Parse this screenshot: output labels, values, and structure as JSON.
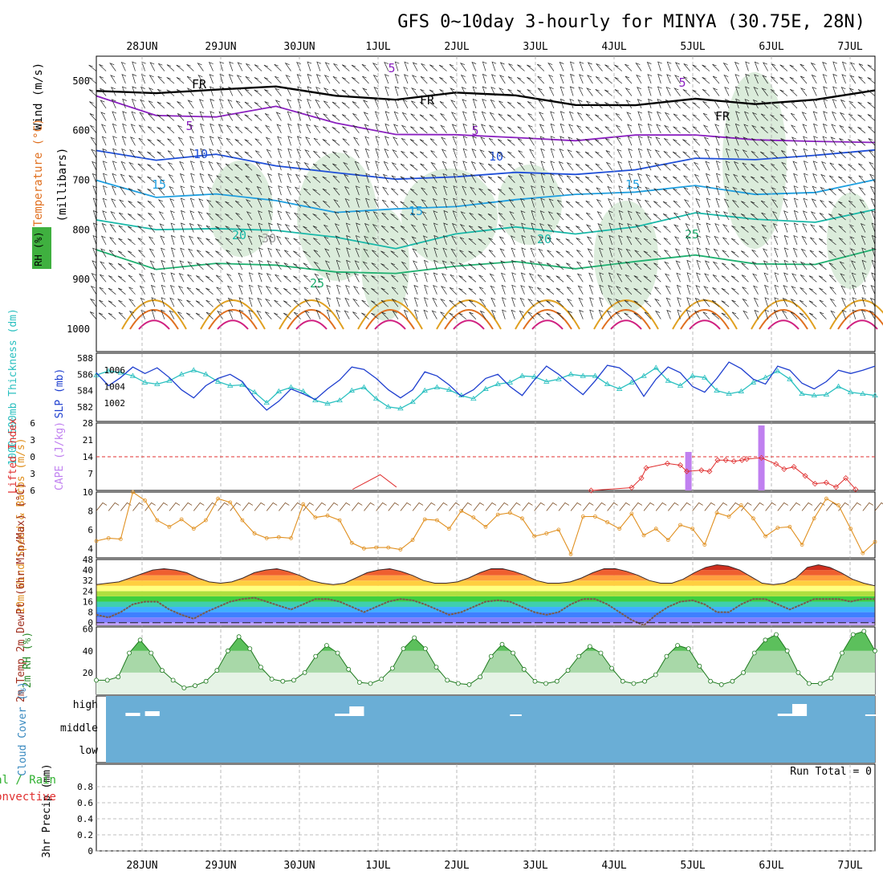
{
  "title": "GFS 0~10day 3-hourly for MINYA (30.75E, 28N)",
  "date_labels": [
    "28JUN",
    "29JUN",
    "30JUN",
    "1JUL",
    "2JUL",
    "3JUL",
    "4JUL",
    "5JUL",
    "6JUL",
    "7JUL"
  ],
  "colors": {
    "grid": "#aaaaaa",
    "sounding_5": "#8a1fbf",
    "sounding_10": "#1f4fd8",
    "sounding_15": "#1e9fe0",
    "sounding_20": "#18b8a8",
    "sounding_25": "#1fb070",
    "sounding_hot": "#e0a020",
    "rh_shade": "#cfe6cf",
    "thickness": "#2bc0c0",
    "slp": "#1f3fcf",
    "cape": "#c080f0",
    "lifted_index": "#e03030",
    "wind": "#e09020",
    "temp_fill": "#d02010",
    "dewpt": "#7a5a4a",
    "rh_line": "#2aa02a",
    "cloud": "#6aaed6",
    "rain": "#30b030",
    "convective": "#e03030",
    "sounding_label_5": "#8a1fbf",
    "thickness_label": "#2bc0c0",
    "slp_label": "#1f3fcf",
    "cape_label": "#c080f0",
    "li_label": "#e03030",
    "wind_label": "#e09020"
  },
  "chart_data": [
    {
      "type": "heatmap",
      "panel": "sounding",
      "ylabel": "(millibars)",
      "legend_labels": [
        "Wind (m/s)",
        "Temperature (°C)",
        "RH (%)"
      ],
      "y_ticks": [
        500,
        600,
        700,
        800,
        900,
        1000
      ],
      "ylim": [
        450,
        1000
      ],
      "contours": [
        {
          "label": "5",
          "color": "#8a1fbf",
          "levels_mb": [
            530,
            560,
            575,
            560,
            580,
            600,
            615,
            620,
            612,
            605,
            618,
            620,
            612,
            625
          ]
        },
        {
          "label": "FR",
          "color": "#000000",
          "levels_mb": [
            520,
            515,
            520,
            520,
            525,
            530,
            530,
            535,
            540,
            545,
            545,
            548,
            528,
            520
          ]
        },
        {
          "label": "10",
          "color": "#1f4fd8",
          "levels_mb": [
            640,
            650,
            650,
            680,
            680,
            690,
            700,
            690,
            680,
            675,
            665,
            660,
            640,
            640
          ]
        },
        {
          "label": "15",
          "color": "#1e9fe0",
          "levels_mb": [
            700,
            725,
            730,
            750,
            760,
            750,
            760,
            745,
            720,
            720,
            720,
            730,
            715,
            700
          ]
        },
        {
          "label": "20",
          "color": "#18b8a8",
          "levels_mb": [
            780,
            790,
            800,
            810,
            810,
            830,
            815,
            800,
            800,
            790,
            775,
            780,
            775,
            760
          ]
        },
        {
          "label": "25",
          "color": "#1fb070",
          "levels_mb": [
            840,
            870,
            870,
            880,
            880,
            880,
            880,
            870,
            870,
            860,
            860,
            870,
            860,
            840
          ]
        }
      ],
      "labels_on_chart": [
        "5",
        "FR",
        "10",
        "15",
        "20",
        "25",
        "30"
      ]
    },
    {
      "type": "line",
      "panel": "thickness_slp",
      "ylabel_left": "1000-500mb Thickness (dm)",
      "ylabel_right": "SLP (mb)",
      "left_ticks": [
        582,
        584,
        586,
        588
      ],
      "right_ticks": [
        1002,
        1004,
        1006
      ],
      "ylim_left": [
        581,
        588
      ],
      "ylim_right": [
        1000.5,
        1007.5
      ],
      "series": [
        {
          "name": "Thickness",
          "values": [
            585.9,
            586.4,
            586.2,
            585.8,
            585.0,
            584.8,
            585.2,
            586.0,
            586.5,
            586.0,
            585.1,
            584.6,
            584.7,
            583.8,
            582.5,
            583.9,
            584.4,
            583.9,
            582.8,
            582.4,
            582.8,
            584.0,
            584.4,
            583.0,
            582.0,
            581.8,
            582.6,
            584.0,
            584.4,
            584.1,
            583.4,
            583.0,
            584.2,
            584.8,
            585.0,
            585.8,
            585.7,
            585.1,
            585.4,
            586.0,
            585.8,
            585.8,
            584.8,
            584.2,
            585.0,
            585.8,
            586.8,
            585.2,
            584.6,
            585.8,
            585.6,
            584.0,
            583.6,
            583.9,
            585.0,
            585.6,
            586.4,
            585.4,
            583.6,
            583.4,
            583.5,
            584.5,
            583.8,
            583.6,
            583.4
          ],
          "color": "#2bc0c0",
          "axis": "left"
        },
        {
          "name": "SLP",
          "values": [
            1005.7,
            1004.1,
            1005.1,
            1006.4,
            1005.6,
            1006.3,
            1005.1,
            1003.6,
            1002.6,
            1004.1,
            1005.0,
            1005.5,
            1004.6,
            1002.6,
            1001.1,
            1002.2,
            1003.7,
            1003.1,
            1002.4,
            1003.7,
            1004.8,
            1006.4,
            1006.1,
            1005.0,
            1003.6,
            1002.6,
            1003.6,
            1005.8,
            1005.3,
            1004.2,
            1002.8,
            1003.6,
            1005.0,
            1005.5,
            1004.0,
            1002.9,
            1004.8,
            1006.5,
            1005.5,
            1004.2,
            1003.0,
            1004.7,
            1006.6,
            1006.3,
            1005.1,
            1002.8,
            1004.9,
            1006.4,
            1005.7,
            1004.0,
            1003.3,
            1005.0,
            1007.0,
            1006.2,
            1004.9,
            1004.3,
            1006.5,
            1006.0,
            1004.4,
            1003.7,
            1004.6,
            1006.0,
            1005.6,
            1006.0,
            1006.5
          ],
          "color": "#1f3fcf",
          "axis": "right"
        }
      ]
    },
    {
      "type": "bar",
      "panel": "cape_li",
      "ylabel_left": "Lifted Index",
      "ylabel_right": "CAPE (J/kg)",
      "left_ticks": [
        -6,
        -3,
        0,
        3,
        6
      ],
      "right_ticks": [
        7,
        14,
        21,
        28
      ],
      "ylim_right": [
        0,
        28
      ],
      "cape_bars": [
        {
          "t": 36.5,
          "value": 16
        },
        {
          "t": 41.0,
          "value": 27
        }
      ],
      "lifted_index": [
        {
          "t": 30.5,
          "value": 6.0
        },
        {
          "t": 33.0,
          "value": 5.5
        },
        {
          "t": 33.6,
          "value": 3.8
        },
        {
          "t": 33.9,
          "value": 2.0
        },
        {
          "t": 35.2,
          "value": 1.2
        },
        {
          "t": 36.0,
          "value": 1.5
        },
        {
          "t": 36.4,
          "value": 2.6
        },
        {
          "t": 37.3,
          "value": 2.4
        },
        {
          "t": 37.8,
          "value": 2.6
        },
        {
          "t": 38.3,
          "value": 0.6
        },
        {
          "t": 38.8,
          "value": 0.6
        },
        {
          "t": 39.3,
          "value": 0.8
        },
        {
          "t": 39.8,
          "value": 0.6
        },
        {
          "t": 40.1,
          "value": 0.4
        },
        {
          "t": 41.0,
          "value": 0.2
        },
        {
          "t": 41.9,
          "value": 1.3
        },
        {
          "t": 42.4,
          "value": 2.2
        },
        {
          "t": 43.0,
          "value": 1.8
        },
        {
          "t": 43.7,
          "value": 3.4
        },
        {
          "t": 44.3,
          "value": 4.8
        },
        {
          "t": 45.0,
          "value": 4.6
        },
        {
          "t": 45.6,
          "value": 5.4
        },
        {
          "t": 46.2,
          "value": 3.8
        },
        {
          "t": 46.8,
          "value": 5.8
        }
      ],
      "reference_line": 0,
      "li_early": [
        {
          "t": 15.8,
          "value": 5.8
        },
        {
          "t": 17.5,
          "value": 3.2
        },
        {
          "t": 18.5,
          "value": 5.4
        }
      ]
    },
    {
      "type": "line",
      "panel": "wind10m",
      "ylabel": "10m Wind Speed & Barbs (m/s)",
      "y_ticks": [
        4,
        6,
        8,
        10
      ],
      "ylim": [
        3,
        10
      ],
      "series": [
        {
          "name": "Speed",
          "color": "#e09020",
          "values": [
            4.8,
            5.1,
            5.0,
            10.0,
            9.1,
            7.0,
            6.3,
            7.1,
            6.1,
            7.0,
            9.3,
            8.9,
            7.0,
            5.6,
            5.1,
            5.2,
            5.1,
            8.7,
            7.3,
            7.5,
            7.0,
            4.6,
            4.0,
            4.1,
            4.1,
            3.9,
            4.9,
            7.1,
            7.0,
            6.1,
            8.0,
            7.3,
            6.3,
            7.6,
            7.8,
            7.2,
            5.3,
            5.6,
            6.0,
            3.4,
            7.4,
            7.4,
            6.8,
            6.1,
            7.7,
            5.4,
            6.1,
            4.9,
            6.5,
            6.1,
            4.4,
            7.8,
            7.4,
            8.6,
            7.2,
            5.3,
            6.2,
            6.3,
            4.4,
            7.2,
            9.3,
            8.6,
            6.1,
            3.5,
            4.7
          ]
        }
      ]
    },
    {
      "type": "area",
      "panel": "temp",
      "ylabel": "2m Temp 2m DewPt (6hr Min/Max) (°C)",
      "y_ticks": [
        0,
        8,
        16,
        24,
        32,
        40,
        48
      ],
      "ylim": [
        -2,
        48
      ],
      "series": [
        {
          "name": "2m Temp",
          "values": [
            29,
            30,
            31,
            34,
            37,
            40,
            41,
            40,
            38,
            34,
            31,
            30,
            31,
            34,
            38,
            40,
            41,
            39,
            36,
            32,
            30,
            29,
            30,
            34,
            38,
            40,
            41,
            39,
            36,
            32,
            30,
            30,
            31,
            34,
            38,
            41,
            41,
            39,
            36,
            32,
            30,
            30,
            31,
            34,
            38,
            41,
            41,
            39,
            36,
            32,
            30,
            30,
            33,
            38,
            42,
            44,
            43,
            40,
            35,
            30,
            29,
            30,
            34,
            42,
            44,
            42,
            38,
            33,
            30,
            28
          ]
        },
        {
          "name": "2m DewPt",
          "values": [
            6,
            4,
            8,
            14,
            16,
            16,
            10,
            6,
            3,
            8,
            12,
            16,
            18,
            19,
            16,
            13,
            10,
            14,
            18,
            18,
            16,
            12,
            8,
            12,
            16,
            18,
            17,
            14,
            10,
            6,
            8,
            12,
            16,
            17,
            16,
            12,
            8,
            6,
            8,
            14,
            18,
            18,
            14,
            8,
            2,
            -2,
            6,
            12,
            16,
            17,
            14,
            8,
            8,
            14,
            18,
            18,
            14,
            10,
            14,
            18,
            18,
            18,
            16,
            18,
            18
          ]
        }
      ]
    },
    {
      "type": "area",
      "panel": "rh2m",
      "ylabel": "2m RH (%)",
      "y_ticks": [
        20,
        40,
        60
      ],
      "ylim": [
        0,
        62
      ],
      "series": [
        {
          "name": "2m RH",
          "color": "#2aa02a",
          "values": [
            13,
            13,
            16,
            38,
            50,
            38,
            22,
            13,
            6,
            8,
            12,
            22,
            40,
            53,
            42,
            25,
            14,
            12,
            13,
            20,
            35,
            45,
            38,
            23,
            11,
            10,
            14,
            24,
            42,
            52,
            42,
            25,
            13,
            10,
            9,
            16,
            35,
            46,
            38,
            23,
            12,
            10,
            12,
            22,
            35,
            44,
            38,
            24,
            12,
            10,
            12,
            18,
            35,
            45,
            42,
            26,
            12,
            9,
            12,
            20,
            38,
            50,
            55,
            40,
            20,
            10,
            10,
            15,
            38,
            55,
            58,
            40
          ]
        }
      ]
    },
    {
      "type": "bar",
      "panel": "cloud",
      "ylabel": "Cloud Cover (%)",
      "categories": [
        "high",
        "middle",
        "low"
      ],
      "clear_gaps": [
        {
          "t": 3.0,
          "level": "high",
          "width": 1.5,
          "depth": 4
        },
        {
          "t": 5.0,
          "level": "high",
          "width": 1.5,
          "depth": 6
        },
        {
          "t": 24.5,
          "level": "high",
          "width": 3.0,
          "depth": 3
        },
        {
          "t": 26.0,
          "level": "high",
          "width": 1.5,
          "depth": 12
        },
        {
          "t": 42.5,
          "level": "high",
          "width": 1.2,
          "depth": 2
        },
        {
          "t": 70.0,
          "level": "high",
          "width": 2.0,
          "depth": 3
        },
        {
          "t": 71.5,
          "level": "high",
          "width": 1.5,
          "depth": 15
        },
        {
          "t": 79.0,
          "level": "high",
          "width": 2.0,
          "depth": 2
        },
        {
          "t": 81.0,
          "level": "high",
          "width": 1.0,
          "depth": 2
        }
      ]
    },
    {
      "type": "bar",
      "panel": "precip",
      "ylabel": "3hr Precip (mm)",
      "legend_labels": [
        "Total / Rain",
        "Convective"
      ],
      "y_ticks": [
        0,
        0.2,
        0.4,
        0.6,
        0.8
      ],
      "ylim": [
        0,
        0.98
      ],
      "run_total_label": "Run Total = 0",
      "values": []
    }
  ]
}
